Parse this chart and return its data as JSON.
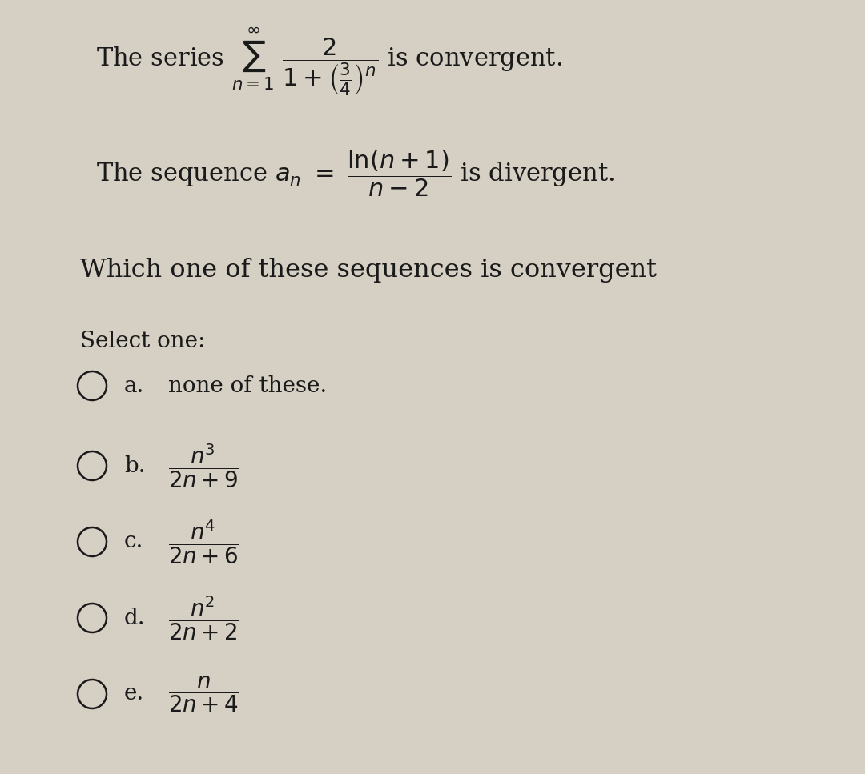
{
  "background_color": "#d6d0c4",
  "text_color": "#1a1a1a",
  "title_line1": "The series $\\sum_{n=1}^{\\infty} \\dfrac{2}{1+(\\frac{3}{4})^n}$ is convergent.",
  "title_line2": "The sequence $a_n = \\dfrac{\\ln(n+1)}{n-2}$ is divergent.",
  "question": "Which one of these sequences is convergent",
  "select_label": "Select one:",
  "options": [
    {
      "letter": "a.",
      "text": "none of these.",
      "math": false
    },
    {
      "letter": "b.",
      "text": "$\\dfrac{n^3}{2n+9}$",
      "math": true
    },
    {
      "letter": "c.",
      "text": "$\\dfrac{n^4}{2n+6}$",
      "math": true
    },
    {
      "letter": "d.",
      "text": "$\\dfrac{n^2}{2n+2}$",
      "math": true
    },
    {
      "letter": "e.",
      "text": "$\\dfrac{n}{2n+4}$",
      "math": true
    }
  ]
}
